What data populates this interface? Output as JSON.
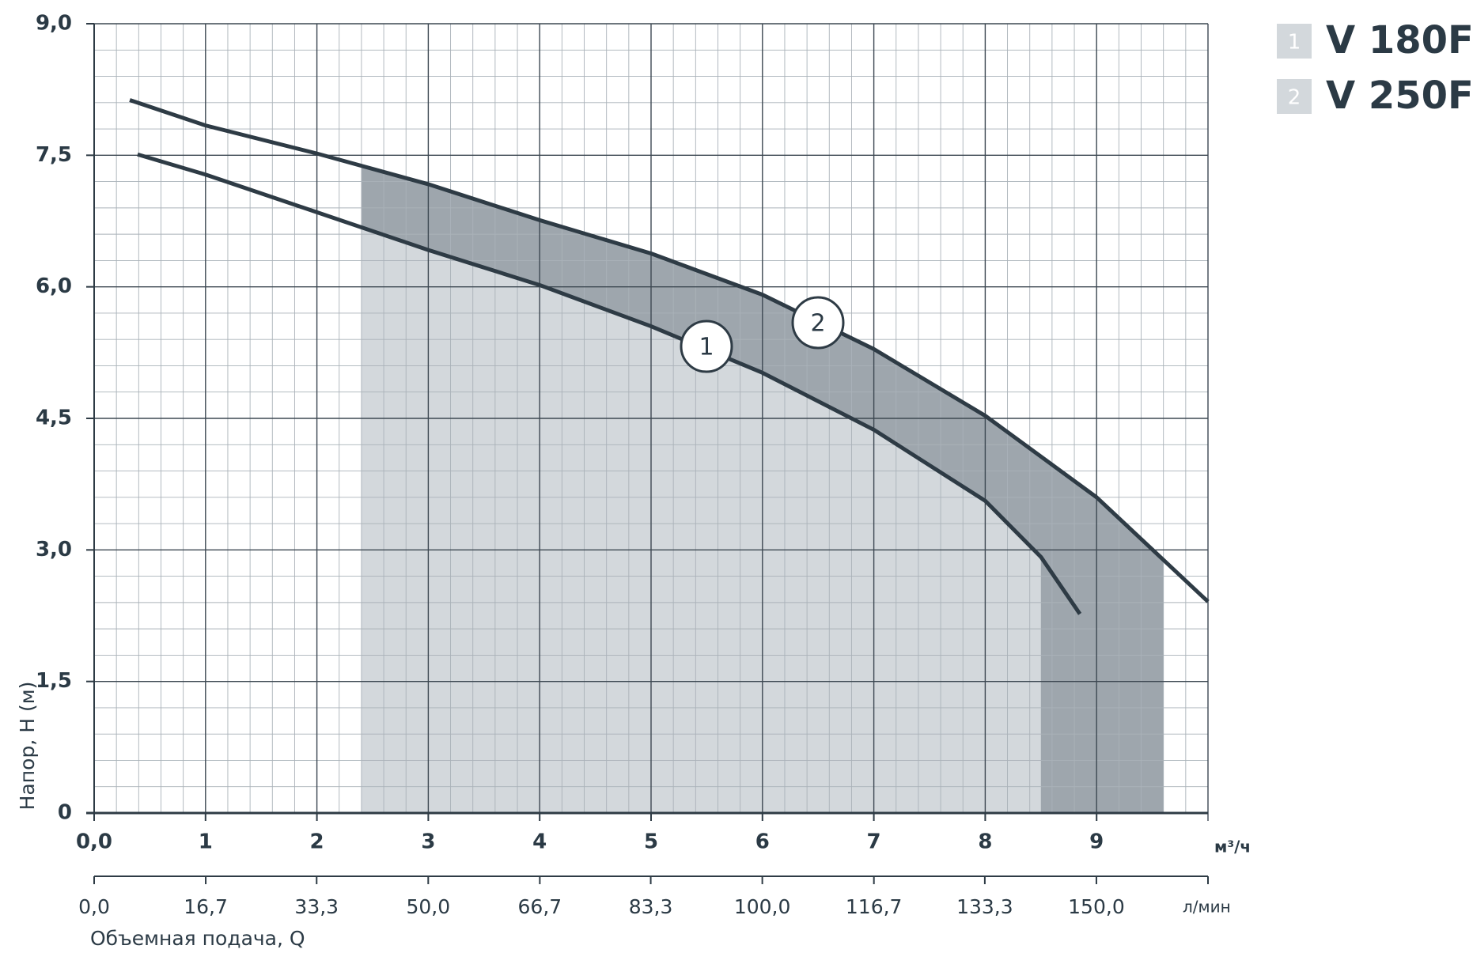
{
  "chart_data": {
    "type": "line",
    "y_label": "Напор, H (м)",
    "x_label": "Объемная подача, Q",
    "x_unit": "м³/ч",
    "x2_unit": "л/мин",
    "xlim": [
      0,
      10
    ],
    "xticks": [
      {
        "value": 0,
        "label": "0,0"
      },
      1,
      2,
      3,
      4,
      5,
      6,
      7,
      8,
      9
    ],
    "x2lim": [
      0,
      166.7
    ],
    "x2ticks": [
      {
        "value": 0,
        "label": "0,0"
      },
      {
        "value": 16.7,
        "label": "16,7"
      },
      {
        "value": 33.3,
        "label": "33,3"
      },
      {
        "value": 50,
        "label": "50,0"
      },
      {
        "value": 66.7,
        "label": "66,7"
      },
      {
        "value": 83.3,
        "label": "83,3"
      },
      {
        "value": 100,
        "label": "100,0"
      },
      {
        "value": 116.7,
        "label": "116,7"
      },
      {
        "value": 133.3,
        "label": "133,3"
      },
      {
        "value": 150,
        "label": "150,0"
      }
    ],
    "ylim": [
      0,
      9
    ],
    "yticks": [
      0,
      {
        "value": 1.5,
        "label": "1,5"
      },
      {
        "value": 3,
        "label": "3,0"
      },
      {
        "value": 4.5,
        "label": "4,5"
      },
      {
        "value": 6,
        "label": "6,0"
      },
      {
        "value": 7.5,
        "label": "7,5"
      },
      {
        "value": 9,
        "label": "9,0"
      }
    ],
    "grid": true,
    "minor_divisions": 5,
    "legend": "top-right",
    "series": [
      {
        "name": "V 180F",
        "label": "1",
        "color": "#2e3b45",
        "fill": "#d3d8dc",
        "operating_range": [
          2.4,
          8.5
        ],
        "x": [
          0.39,
          1,
          2,
          3,
          4,
          5,
          6,
          7,
          8,
          8.5,
          8.85
        ],
        "values": [
          7.51,
          7.28,
          6.85,
          6.42,
          6.02,
          5.55,
          5.02,
          4.37,
          3.56,
          2.92,
          2.27
        ]
      },
      {
        "name": "V 250F",
        "label": "2",
        "color": "#2e3b45",
        "fill": "#9ea6ad",
        "operating_range": [
          2.4,
          9.6
        ],
        "x": [
          0.32,
          1,
          2,
          3,
          4,
          5,
          6,
          7,
          8,
          9,
          10
        ],
        "values": [
          8.13,
          7.84,
          7.52,
          7.17,
          6.76,
          6.38,
          5.91,
          5.29,
          4.53,
          3.6,
          2.41
        ]
      }
    ]
  }
}
